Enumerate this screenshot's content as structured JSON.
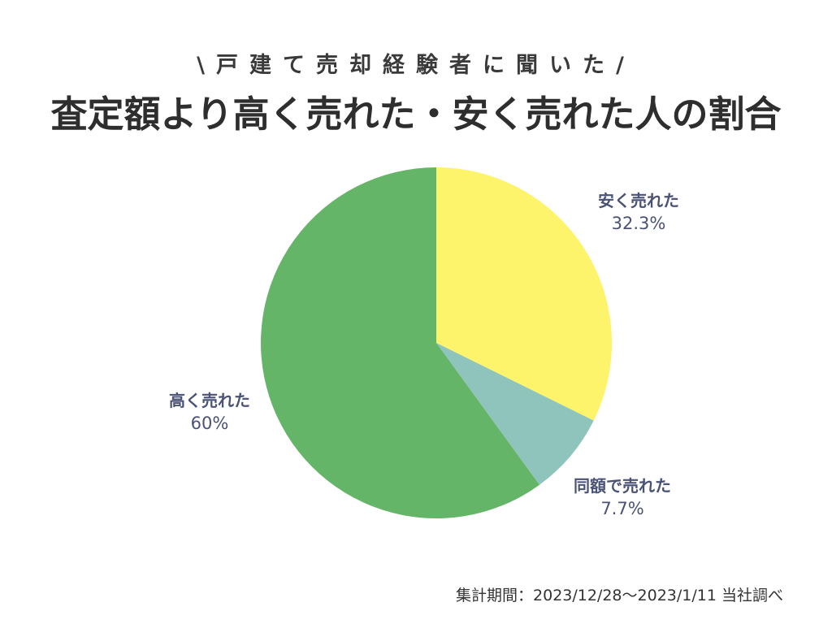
{
  "header": {
    "subtitle": "\\戸建て売却経験者に聞いた/",
    "title": "査定額より高く売れた・安く売れた人の割合"
  },
  "chart_data": {
    "type": "pie",
    "start_angle_deg": 0,
    "direction": "clockwise",
    "slices": [
      {
        "label": "安く売れた",
        "value": 32.3,
        "value_label": "32.3%",
        "color": "#fef46b"
      },
      {
        "label": "同額で売れた",
        "value": 7.7,
        "value_label": "7.7%",
        "color": "#8fc4bc"
      },
      {
        "label": "高く売れた",
        "value": 60,
        "value_label": "60%",
        "color": "#65b568"
      }
    ]
  },
  "footnote": "集計期間：2023/12/28〜2023/1/11 当社調べ"
}
